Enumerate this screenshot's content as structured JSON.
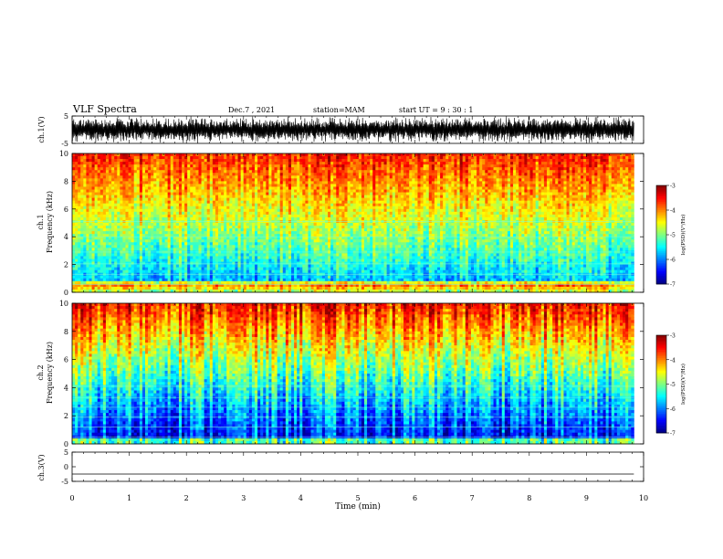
{
  "header": {
    "title": "VLF Spectra",
    "date": "Dec.7 , 2021",
    "station": "station=MAM",
    "start": "start UT = 9 : 30 : 1"
  },
  "chart_data": [
    {
      "type": "line",
      "panel": "ch1-waveform",
      "ylabel": "ch.1(V)",
      "ylim": [
        -5,
        5
      ],
      "yticks": [
        "5",
        "-5"
      ],
      "xlim": [
        0,
        10
      ],
      "x": [
        0,
        9.83
      ],
      "y": [
        0,
        0
      ],
      "note_shape": "dense oscillation filling roughly -5 to 5 V across 0 to 9.83 min"
    },
    {
      "type": "heatmap",
      "panel": "ch1-spectrogram",
      "ylabel": "ch.1\nFrequency (kHz)",
      "ylabel_line1": "ch.1",
      "ylabel_line2": "Frequency (kHz)",
      "ylim": [
        0,
        10
      ],
      "yticks": [
        "0",
        "2",
        "4",
        "6",
        "8",
        "10"
      ],
      "xlim": [
        0,
        10
      ],
      "colorbar": {
        "label": "log(PSD)(V²/Hz)",
        "min": -7,
        "max": -3,
        "ticks": [
          "-3",
          "-4",
          "-5",
          "-6",
          "-7"
        ]
      }
    },
    {
      "type": "heatmap",
      "panel": "ch2-spectrogram",
      "ylabel_line1": "ch.2",
      "ylabel_line2": "Frequency (kHz)",
      "ylim": [
        0,
        10
      ],
      "yticks": [
        "0",
        "2",
        "4",
        "6",
        "8",
        "10"
      ],
      "xlim": [
        0,
        10
      ],
      "colorbar": {
        "label": "log(PSD)(V²/Hz)",
        "min": -7,
        "max": -3,
        "ticks": [
          "-3",
          "-4",
          "-5",
          "-6",
          "-7"
        ]
      }
    },
    {
      "type": "line",
      "panel": "ch3-waveform",
      "ylabel": "ch.3(V)",
      "ylim": [
        -5,
        5
      ],
      "yticks": [
        "5",
        "0",
        "-5"
      ],
      "xlim": [
        0,
        10
      ],
      "x": [
        0,
        9.83
      ],
      "y": [
        -2.5,
        -2.5
      ]
    }
  ],
  "xaxis": {
    "label": "Time (min)",
    "ticks": [
      "0",
      "1",
      "2",
      "3",
      "4",
      "5",
      "6",
      "7",
      "8",
      "9",
      "10"
    ]
  }
}
